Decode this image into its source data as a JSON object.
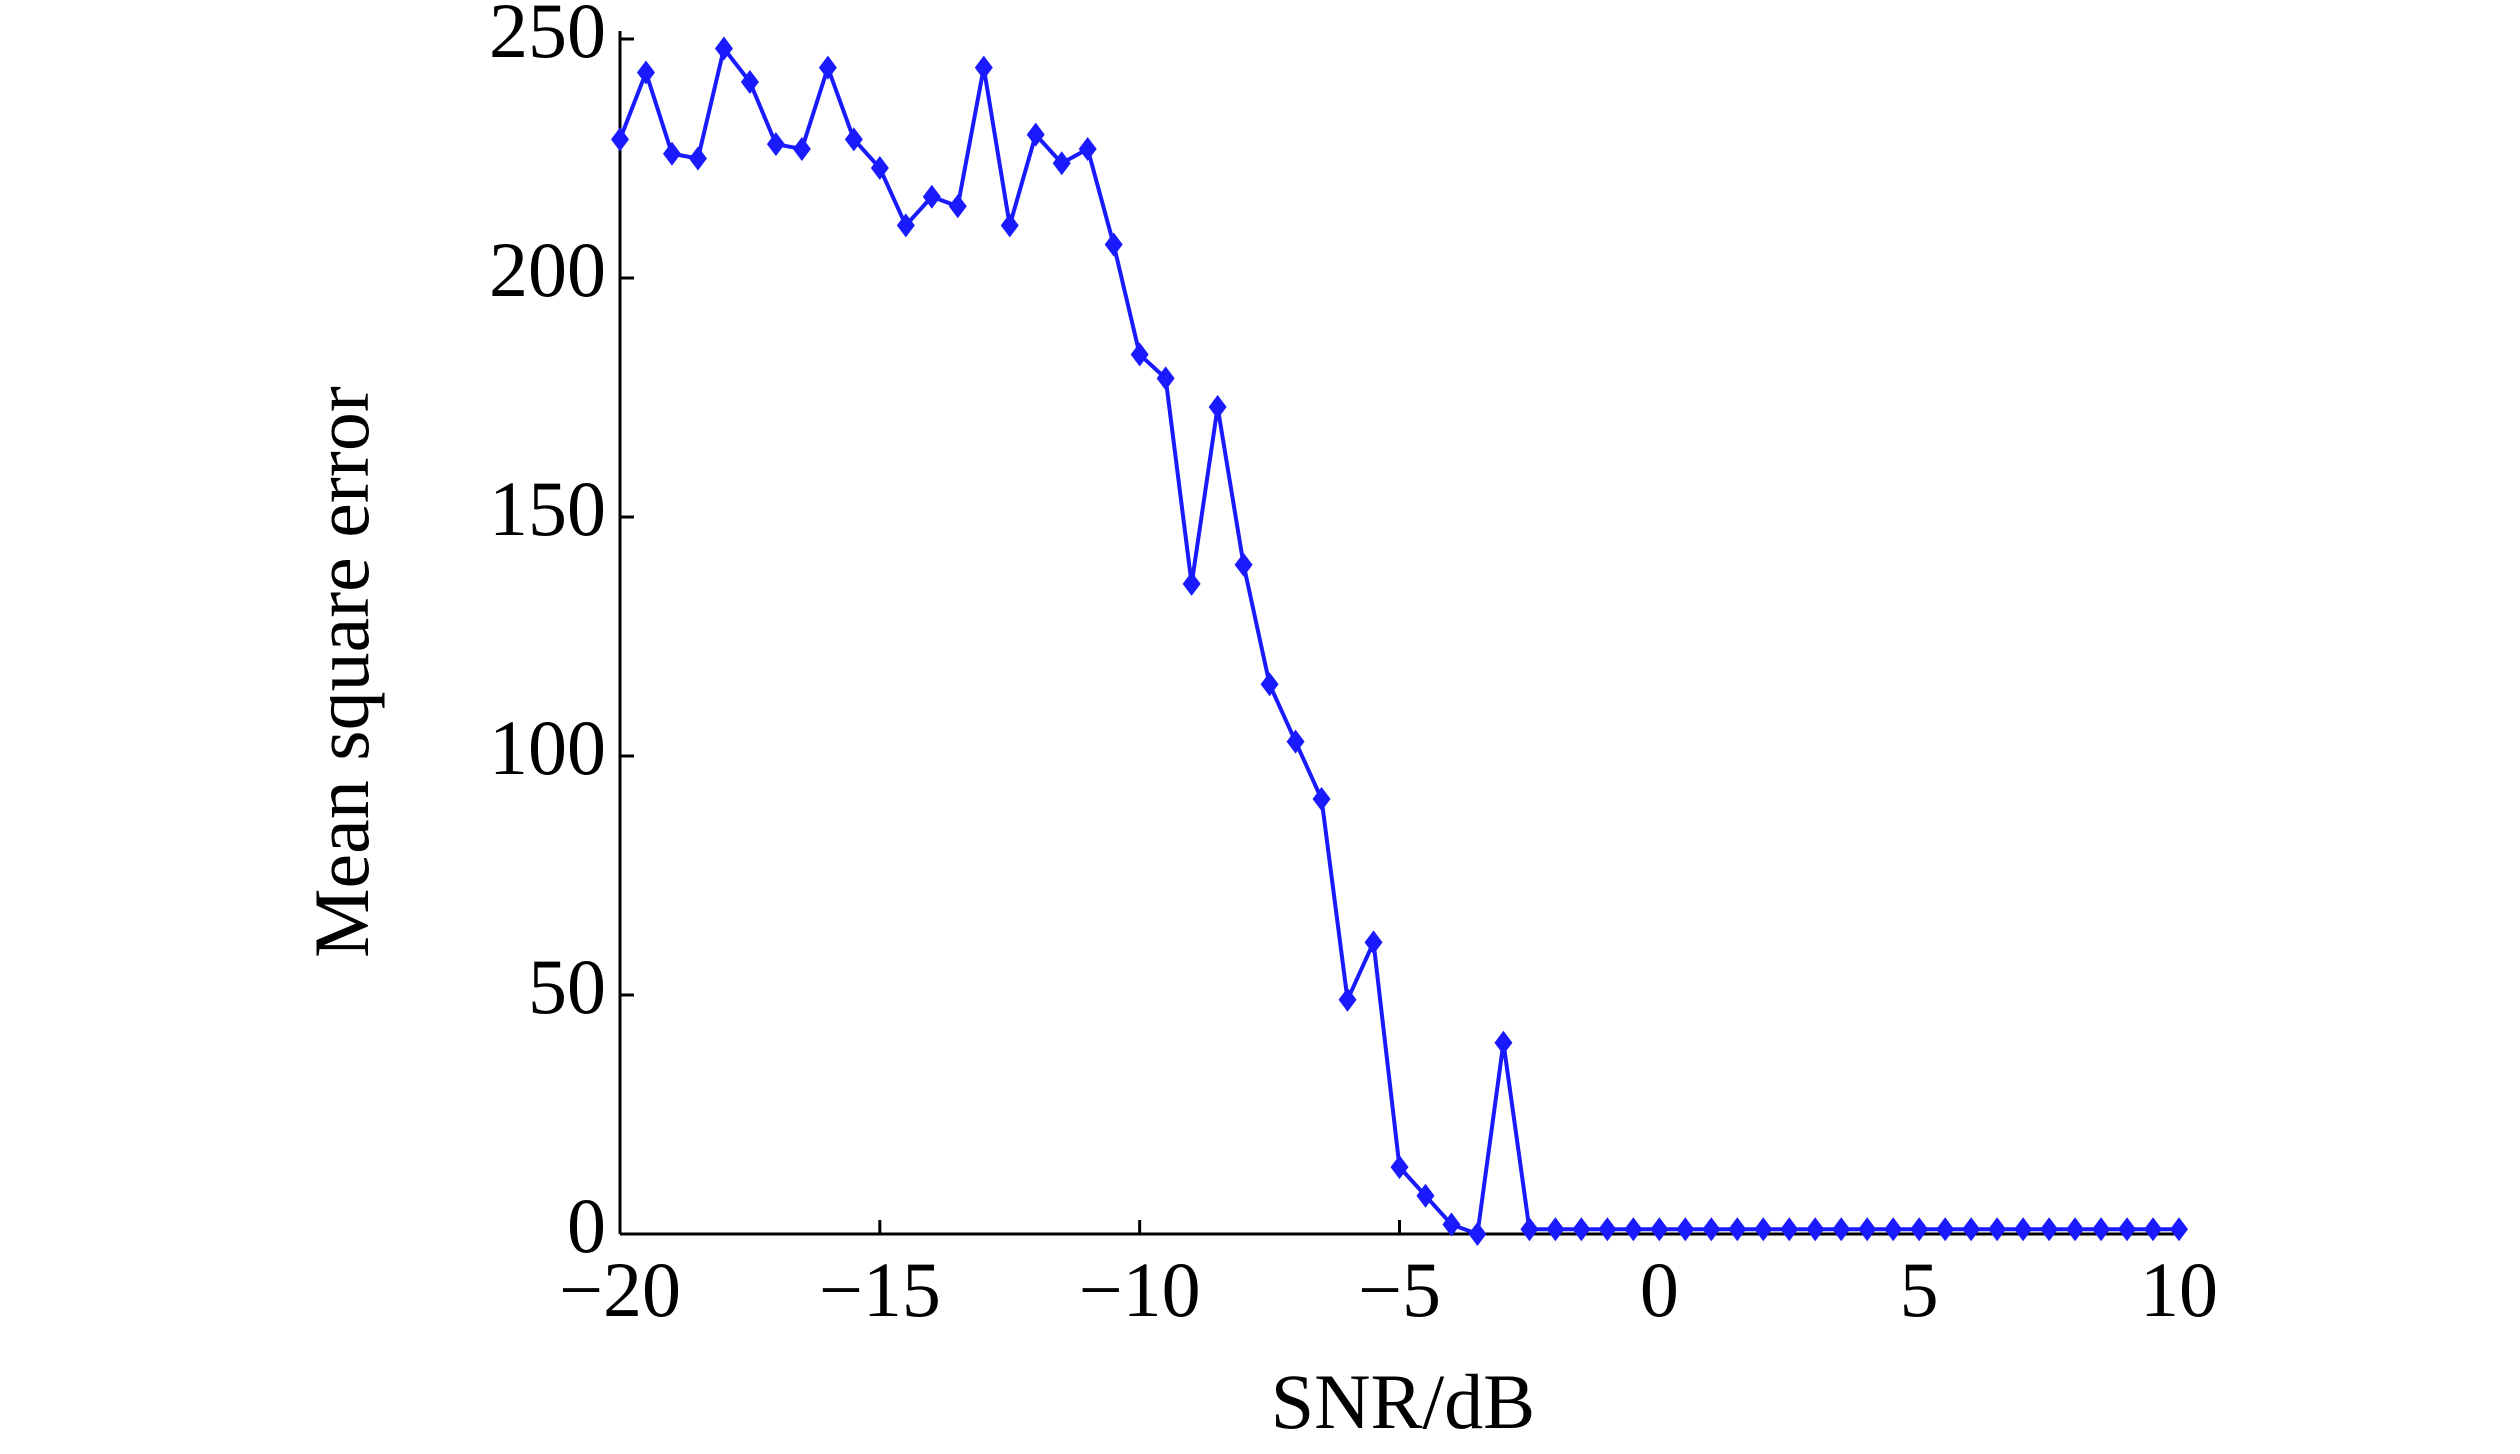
{
  "chart_data": {
    "type": "line",
    "x_label": "SNR/dB",
    "y_label": "Mean square error",
    "x": [
      -20,
      -19.5,
      -19,
      -18.5,
      -18,
      -17.5,
      -17,
      -16.5,
      -16,
      -15.5,
      -15,
      -14.5,
      -14,
      -13.5,
      -13,
      -12.5,
      -12,
      -11.5,
      -11,
      -10.5,
      -10,
      -9.5,
      -9,
      -8.5,
      -8,
      -7.5,
      -7,
      -6.5,
      -6,
      -5.5,
      -5,
      -4.5,
      -4,
      -3.5,
      -3,
      -2.5,
      -2,
      -1.5,
      -1,
      -0.5,
      0,
      0.5,
      1,
      1.5,
      2,
      2.5,
      3,
      3.5,
      4,
      4.5,
      5,
      5.5,
      6,
      6.5,
      7,
      7.5,
      8,
      8.5,
      9,
      9.5,
      10
    ],
    "series": [
      {
        "color": "#1a1aff",
        "marker": "diamond",
        "values": [
          229,
          243,
          226,
          225,
          248,
          241,
          228,
          227,
          244,
          229,
          223,
          211,
          217,
          215,
          244,
          211,
          230,
          224,
          227,
          207,
          184,
          179,
          136,
          173,
          140,
          115,
          103,
          91,
          49,
          61,
          14,
          8,
          2,
          0,
          40,
          1,
          1,
          1,
          1,
          1,
          1,
          1,
          1,
          1,
          1,
          1,
          1,
          1,
          1,
          1,
          1,
          1,
          1,
          1,
          1,
          1,
          1,
          1,
          1,
          1,
          1
        ]
      }
    ],
    "xlim": [
      -20,
      10
    ],
    "xticks": [
      {
        "value": -20,
        "label": "−20"
      },
      {
        "value": -15,
        "label": "−15"
      },
      {
        "value": -10,
        "label": "−10"
      },
      {
        "value": -5,
        "label": "−5"
      },
      0,
      5,
      10
    ],
    "ylim": [
      0,
      250
    ],
    "yticks": [
      0,
      50,
      100,
      150,
      200,
      250
    ],
    "grid": false
  }
}
